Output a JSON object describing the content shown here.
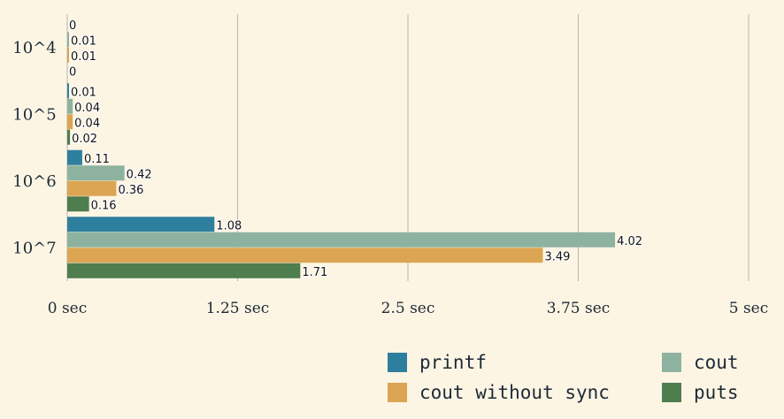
{
  "chart_data": {
    "type": "bar",
    "orientation": "horizontal",
    "categories": [
      "10^4",
      "10^5",
      "10^6",
      "10^7"
    ],
    "x_ticks": [
      "0 sec",
      "1.25 sec",
      "2.5 sec",
      "3.75 sec",
      "5 sec"
    ],
    "xlim": [
      0,
      5
    ],
    "grid": "vertical",
    "legend": "bottom-right",
    "series": [
      {
        "name": "printf",
        "values": [
          0,
          0.01,
          0.11,
          1.08
        ],
        "labels": [
          "0",
          "0.01",
          "0.11",
          "1.08"
        ],
        "color": "#2e7f9d"
      },
      {
        "name": "cout",
        "values": [
          0.01,
          0.04,
          0.42,
          4.02
        ],
        "labels": [
          "0.01",
          "0.04",
          "0.42",
          "4.02"
        ],
        "color": "#8db3a0"
      },
      {
        "name": "cout without sync",
        "values": [
          0.01,
          0.04,
          0.36,
          3.49
        ],
        "labels": [
          "0.01",
          "0.04",
          "0.36",
          "3.49"
        ],
        "color": "#dba553"
      },
      {
        "name": "puts",
        "values": [
          0,
          0.02,
          0.16,
          1.71
        ],
        "labels": [
          "0",
          "0.02",
          "0.16",
          "1.71"
        ],
        "color": "#4e7d4e"
      }
    ]
  }
}
